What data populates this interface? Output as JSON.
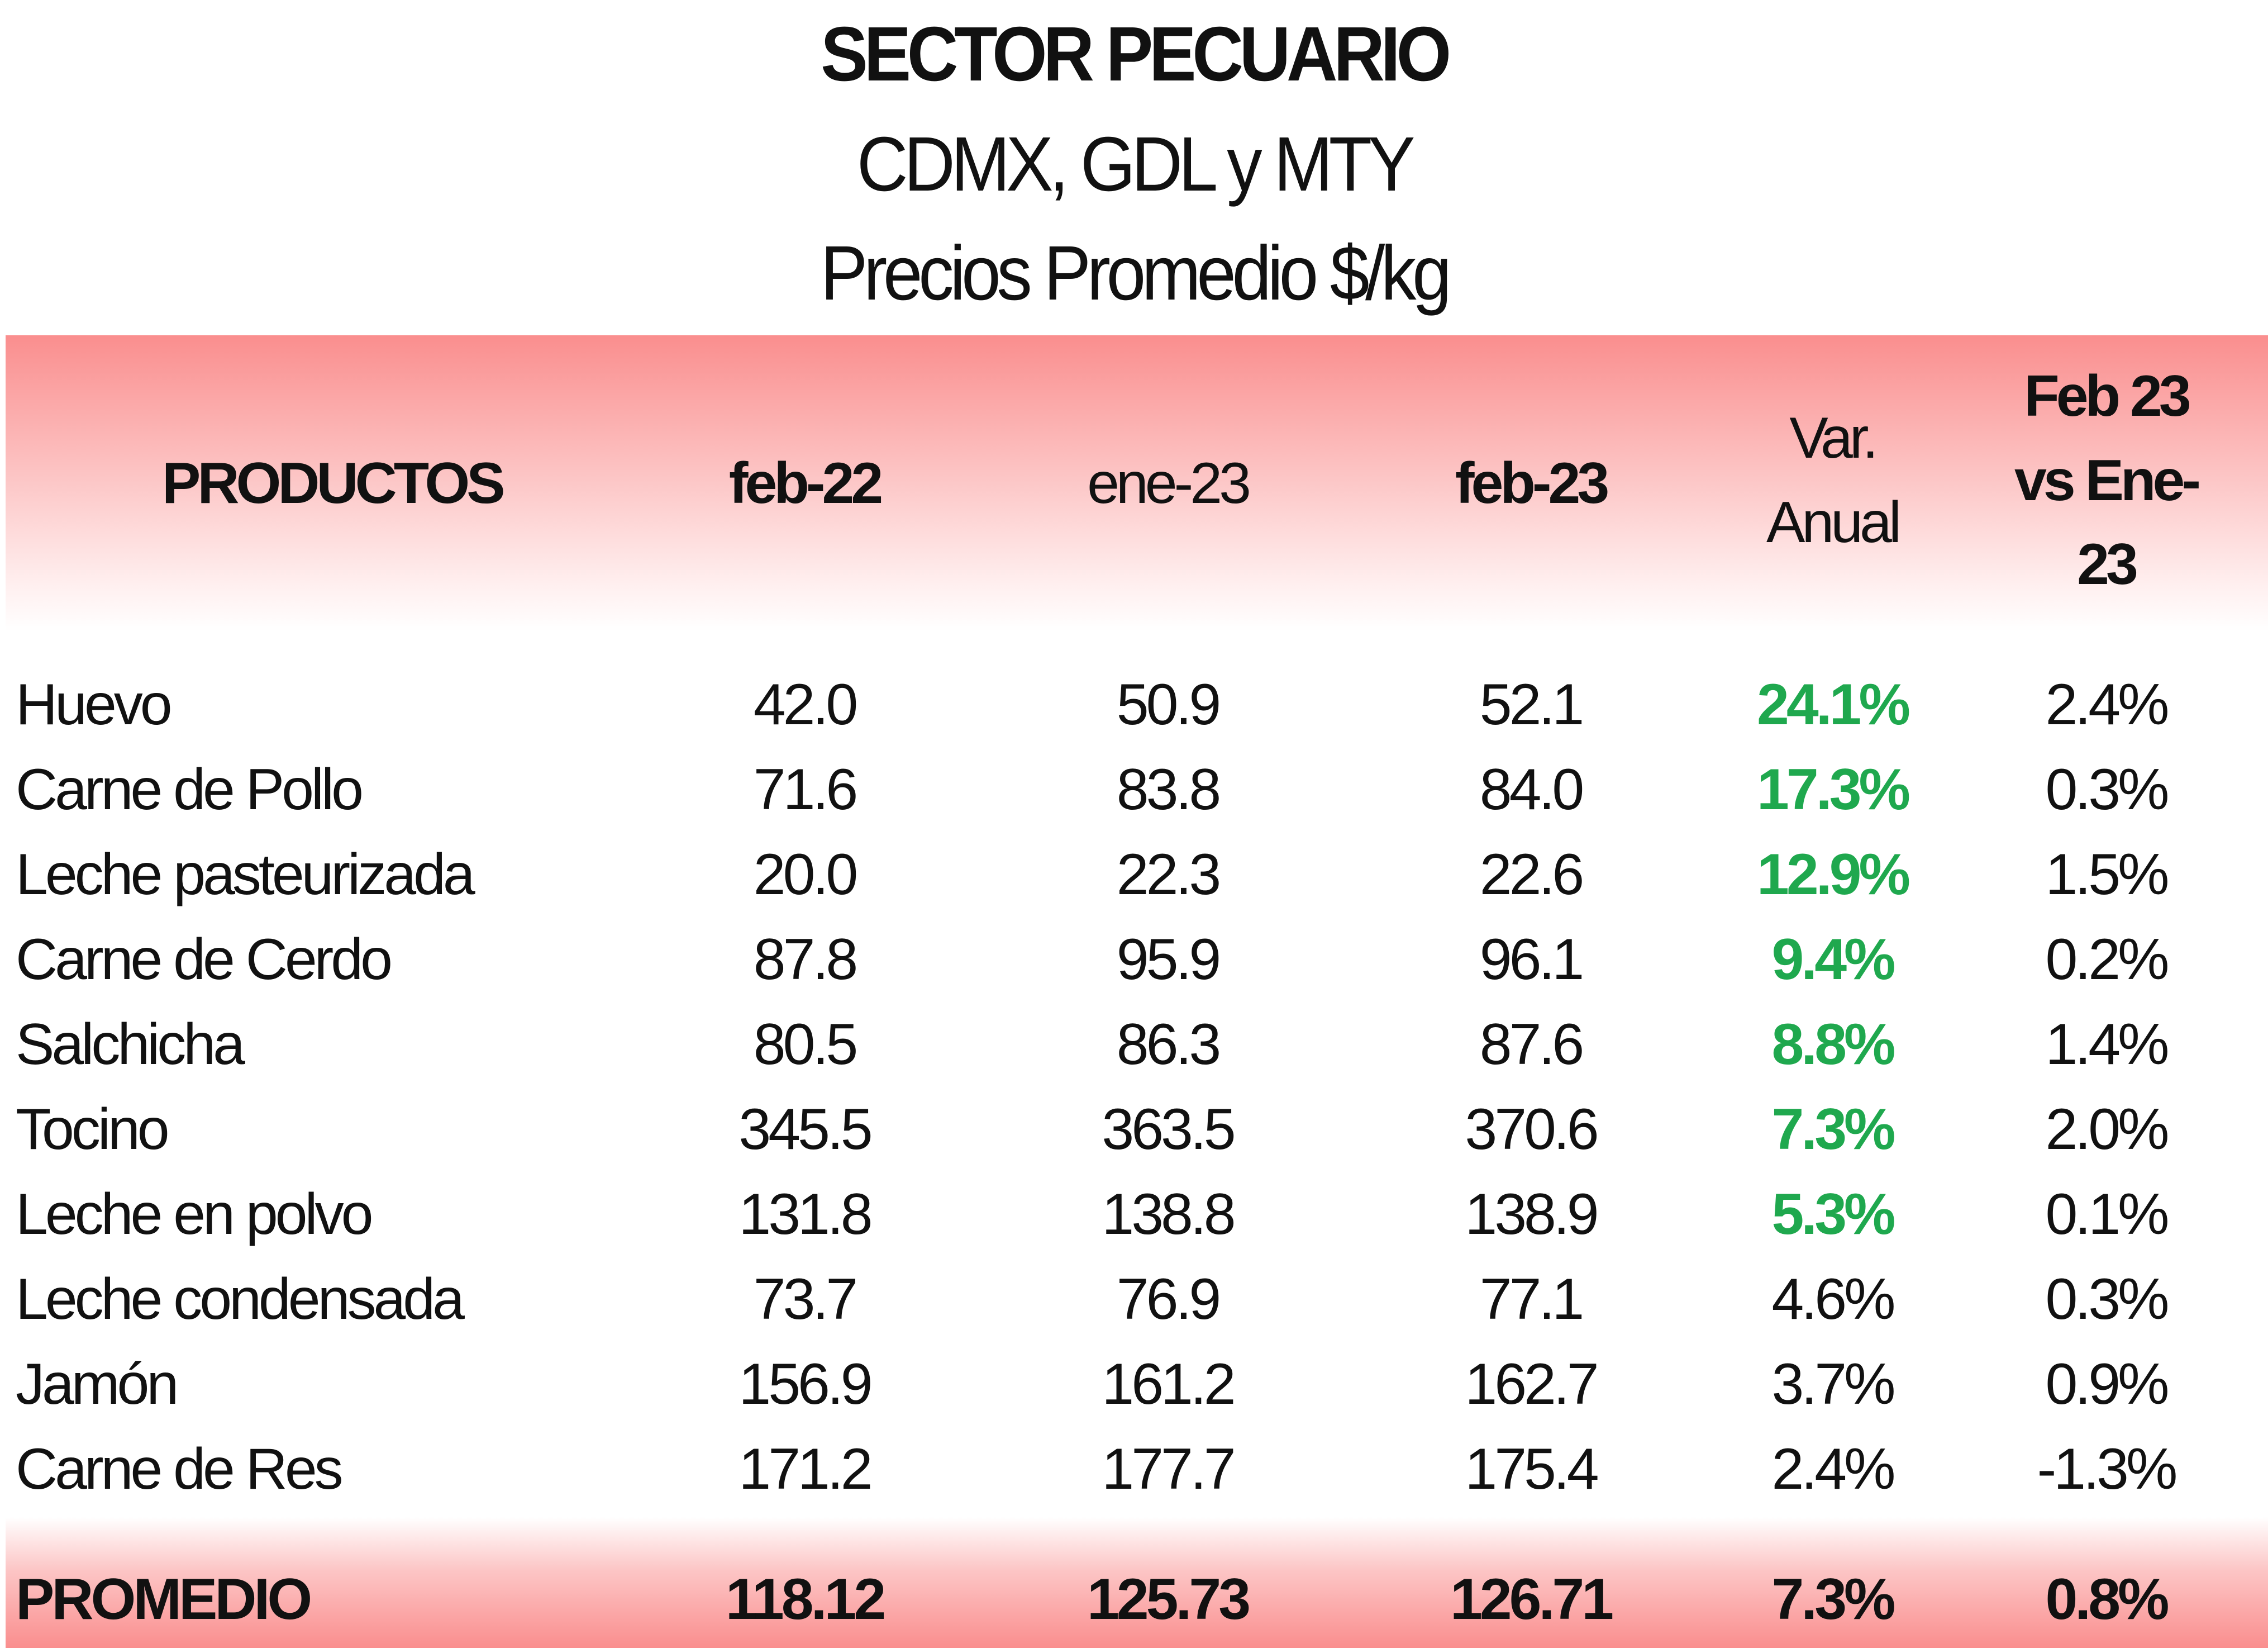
{
  "title": "SECTOR PECUARIO",
  "subtitle1": "CDMX, GDL y MTY",
  "subtitle2": "Precios Promedio $/kg",
  "headers": {
    "productos": "PRODUCTOS",
    "feb22": "feb-22",
    "ene23": "ene-23",
    "feb23": "feb-23",
    "var_anual_line1": "Var.",
    "var_anual_line2": "Anual",
    "feb_vs_ene_line1": "Feb 23",
    "feb_vs_ene_line2": "vs Ene-23"
  },
  "colors": {
    "header_band": "#fa8e8e",
    "positive_highlight": "#1fa84e"
  },
  "rows": [
    {
      "producto": "Huevo",
      "feb22": "42.0",
      "ene23": "50.9",
      "feb23": "52.1",
      "var_anual": "24.1%",
      "feb_vs_ene": "2.4%",
      "highlight": true
    },
    {
      "producto": "Carne de Pollo",
      "feb22": "71.6",
      "ene23": "83.8",
      "feb23": "84.0",
      "var_anual": "17.3%",
      "feb_vs_ene": "0.3%",
      "highlight": true
    },
    {
      "producto": "Leche pasteurizada",
      "feb22": "20.0",
      "ene23": "22.3",
      "feb23": "22.6",
      "var_anual": "12.9%",
      "feb_vs_ene": "1.5%",
      "highlight": true
    },
    {
      "producto": "Carne de Cerdo",
      "feb22": "87.8",
      "ene23": "95.9",
      "feb23": "96.1",
      "var_anual": "9.4%",
      "feb_vs_ene": "0.2%",
      "highlight": true
    },
    {
      "producto": "Salchicha",
      "feb22": "80.5",
      "ene23": "86.3",
      "feb23": "87.6",
      "var_anual": "8.8%",
      "feb_vs_ene": "1.4%",
      "highlight": true
    },
    {
      "producto": "Tocino",
      "feb22": "345.5",
      "ene23": "363.5",
      "feb23": "370.6",
      "var_anual": "7.3%",
      "feb_vs_ene": "2.0%",
      "highlight": true
    },
    {
      "producto": "Leche en polvo",
      "feb22": "131.8",
      "ene23": "138.8",
      "feb23": "138.9",
      "var_anual": "5.3%",
      "feb_vs_ene": "0.1%",
      "highlight": true
    },
    {
      "producto": "Leche condensada",
      "feb22": "73.7",
      "ene23": "76.9",
      "feb23": "77.1",
      "var_anual": "4.6%",
      "feb_vs_ene": "0.3%",
      "highlight": false
    },
    {
      "producto": "Jamón",
      "feb22": "156.9",
      "ene23": "161.2",
      "feb23": "162.7",
      "var_anual": "3.7%",
      "feb_vs_ene": "0.9%",
      "highlight": false
    },
    {
      "producto": "Carne de Res",
      "feb22": "171.2",
      "ene23": "177.7",
      "feb23": "175.4",
      "var_anual": "2.4%",
      "feb_vs_ene": "-1.3%",
      "highlight": false
    }
  ],
  "total": {
    "label": "PROMEDIO",
    "feb22": "118.12",
    "ene23": "125.73",
    "feb23": "126.71",
    "var_anual": "7.3%",
    "feb_vs_ene": "0.8%"
  }
}
